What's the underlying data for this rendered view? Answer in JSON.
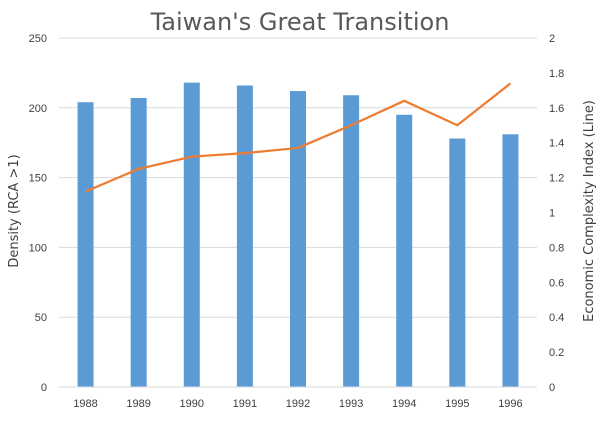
{
  "chart_data": {
    "type": "bar",
    "title": "Taiwan's Great Transition",
    "categories": [
      "1988",
      "1989",
      "1990",
      "1991",
      "1992",
      "1993",
      "1994",
      "1995",
      "1996"
    ],
    "series": [
      {
        "type": "bar",
        "axis": "left",
        "color": "#5b9bd5",
        "values": [
          204,
          207,
          218,
          216,
          212,
          209,
          195,
          178,
          181
        ]
      },
      {
        "type": "line",
        "axis": "right",
        "color": "#ed7d31",
        "values": [
          1.12,
          1.25,
          1.32,
          1.34,
          1.37,
          1.5,
          1.64,
          1.5,
          1.74
        ]
      }
    ],
    "ylabel_left": "Density (RCA >1)",
    "ylabel_right": "Economic Complexity Index (Line)",
    "ylim_left": [
      0,
      250
    ],
    "ylim_right": [
      0,
      2
    ],
    "yticks_left": [
      "0",
      "50",
      "100",
      "150",
      "200",
      "250"
    ],
    "yticks_right": [
      "0",
      "0.2",
      "0.4",
      "0.6",
      "0.8",
      "1",
      "1.2",
      "1.4",
      "1.6",
      "1.8",
      "2"
    ],
    "grid": true,
    "legend": "none"
  }
}
